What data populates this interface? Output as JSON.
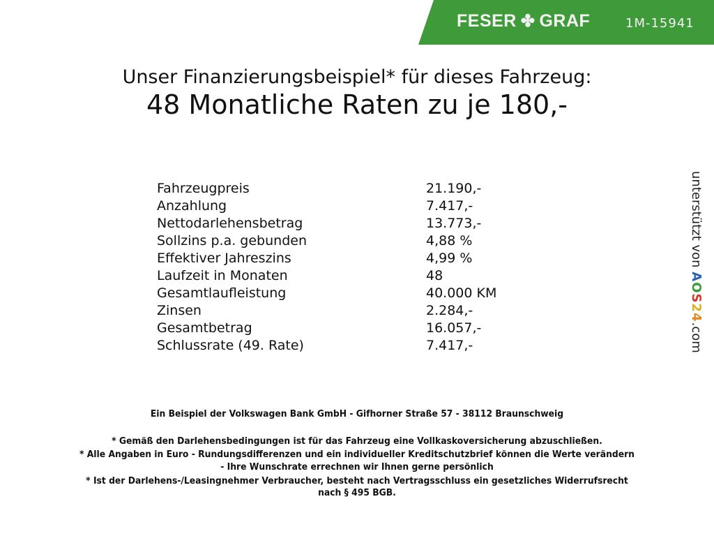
{
  "header": {
    "brand_left": "FESER",
    "brand_right": "GRAF",
    "brand_icon": "clover-icon",
    "code": "1M-15941",
    "brand_color": "#3f9b3a"
  },
  "title": {
    "line1": "Unser Finanzierungsbeispiel* für dieses Fahrzeug:",
    "line2": "48 Monatliche Raten zu je 180,-"
  },
  "rows": [
    {
      "label": "Fahrzeugpreis",
      "value": "21.190,-"
    },
    {
      "label": "Anzahlung",
      "value": "7.417,-"
    },
    {
      "label": "Nettodarlehensbetrag",
      "value": "13.773,-"
    },
    {
      "label": "Sollzins p.a. gebunden",
      "value": "4,88 %"
    },
    {
      "label": "Effektiver Jahreszins",
      "value": "4,99 %"
    },
    {
      "label": "Laufzeit in Monaten",
      "value": "48"
    },
    {
      "label": "Gesamtlaufleistung",
      "value": "40.000 KM"
    },
    {
      "label": "Zinsen",
      "value": "2.284,-"
    },
    {
      "label": "Gesamtbetrag",
      "value": "16.057,-"
    },
    {
      "label": "Schlussrate (49. Rate)",
      "value": "7.417,-"
    }
  ],
  "side": {
    "prefix": "unterstützt von",
    "logo": "AOS24",
    "suffix": ".com"
  },
  "footer": {
    "bank": "Ein Beispiel der Volkswagen Bank GmbH - Gifhorner Straße 57 - 38112 Braunschweig",
    "notes": [
      "* Gemäß den Darlehensbedingungen ist für das Fahrzeug eine Vollkaskoversicherung abzuschließen.",
      "* Alle Angaben in Euro - Rundungsdifferenzen und ein individueller Kreditschutzbrief können die Werte verändern",
      "- Ihre Wunschrate errechnen wir Ihnen gerne persönlich",
      "* Ist der Darlehens-/Leasingnehmer Verbraucher, besteht nach Vertragsschluss ein gesetzliches Widerrufsrecht",
      "nach § 495 BGB."
    ]
  }
}
